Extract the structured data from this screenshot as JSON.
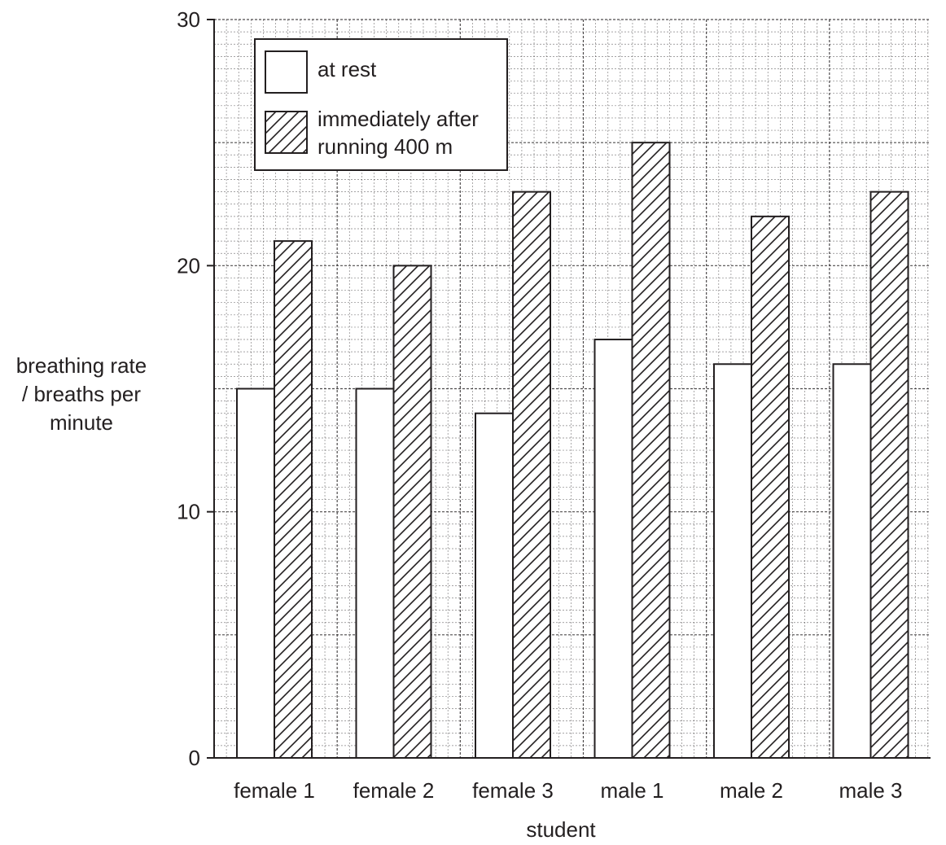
{
  "chart_data": {
    "type": "bar",
    "categories": [
      "female 1",
      "female 2",
      "female 3",
      "male 1",
      "male 2",
      "male 3"
    ],
    "series": [
      {
        "name": "at rest",
        "values": [
          15,
          15,
          14,
          17,
          16,
          16
        ],
        "fill": "plain"
      },
      {
        "name": "immediately after running 400 m",
        "values": [
          21,
          20,
          23,
          25,
          22,
          23
        ],
        "fill": "hatched"
      }
    ],
    "legend_lines": [
      [
        "at rest"
      ],
      [
        "immediately after",
        "running 400 m"
      ]
    ],
    "xlabel": "student",
    "ylabel_lines": [
      "breathing rate",
      "/ breaths per",
      "minute"
    ],
    "ylim": [
      0,
      30
    ],
    "yticks": [
      0,
      10,
      20,
      30
    ],
    "grid": true,
    "legend_position": "top-left",
    "colors": {
      "ink": "#231f20",
      "grid": "#231f20",
      "background": "#ffffff"
    }
  }
}
